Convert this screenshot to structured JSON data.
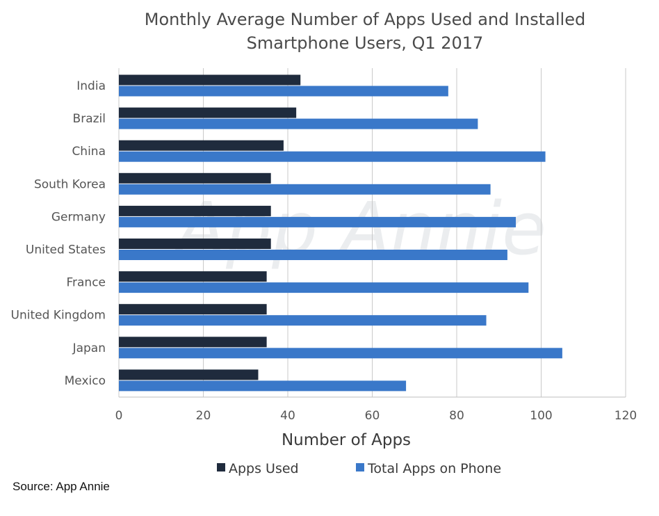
{
  "chart_data": {
    "type": "bar",
    "orientation": "horizontal",
    "title_line1": "Monthly Average Number of Apps Used and Installed",
    "title_line2": "Smartphone Users, Q1 2017",
    "xlabel": "Number of Apps",
    "ylabel": "",
    "xlim": [
      0,
      120
    ],
    "x_ticks": [
      0,
      20,
      40,
      60,
      80,
      100,
      120
    ],
    "grid": "vertical",
    "legend_position": "bottom",
    "watermark": "App Annie",
    "source": "Source: App Annie",
    "categories": [
      "India",
      "Brazil",
      "China",
      "South Korea",
      "Germany",
      "United States",
      "France",
      "United Kingdom",
      "Japan",
      "Mexico"
    ],
    "series": [
      {
        "name": "Apps Used",
        "color": "#1f2b3d",
        "values": [
          43,
          42,
          39,
          36,
          36,
          36,
          35,
          35,
          35,
          33
        ]
      },
      {
        "name": "Total Apps on Phone",
        "color": "#3a78c9",
        "values": [
          78,
          85,
          101,
          88,
          94,
          92,
          97,
          87,
          105,
          68
        ]
      }
    ]
  }
}
